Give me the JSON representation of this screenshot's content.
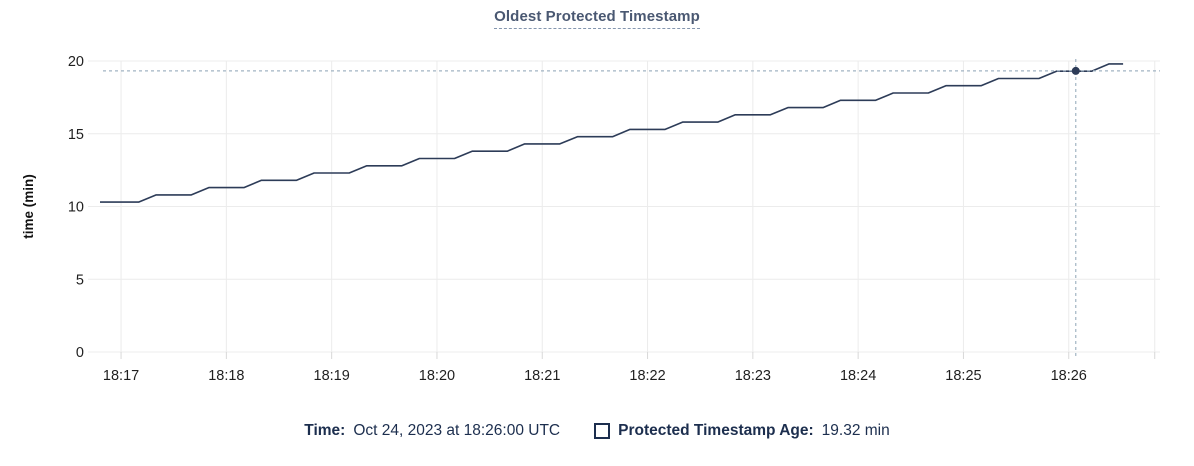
{
  "title": "Oldest Protected Timestamp",
  "legend": {
    "time_label": "Time:",
    "time_value": "Oct 24, 2023 at 18:26:00 UTC",
    "series_label": "Protected Timestamp Age:",
    "series_value": "19.32 min"
  },
  "chart_data": {
    "type": "line",
    "title": "Oldest Protected Timestamp",
    "xlabel": "",
    "ylabel": "time (min)",
    "ylim": [
      0,
      20
    ],
    "yticks": [
      0,
      5,
      10,
      15,
      20
    ],
    "grid": true,
    "legend_position": "bottom",
    "x_domain_seconds": [
      0,
      604
    ],
    "x_ticks": [
      {
        "t": 12,
        "label": "18:17"
      },
      {
        "t": 72,
        "label": "18:18"
      },
      {
        "t": 132,
        "label": "18:19"
      },
      {
        "t": 192,
        "label": "18:20"
      },
      {
        "t": 252,
        "label": "18:21"
      },
      {
        "t": 312,
        "label": "18:22"
      },
      {
        "t": 372,
        "label": "18:23"
      },
      {
        "t": 432,
        "label": "18:24"
      },
      {
        "t": 492,
        "label": "18:25"
      },
      {
        "t": 552,
        "label": "18:26"
      },
      {
        "t": 601,
        "label": ""
      }
    ],
    "series": [
      {
        "name": "Protected Timestamp Age",
        "unit": "min",
        "points": [
          [
            0,
            10.3
          ],
          [
            22,
            10.3
          ],
          [
            32,
            10.8
          ],
          [
            52,
            10.8
          ],
          [
            62,
            11.3
          ],
          [
            82,
            11.3
          ],
          [
            92,
            11.8
          ],
          [
            112,
            11.8
          ],
          [
            122,
            12.3
          ],
          [
            142,
            12.3
          ],
          [
            152,
            12.8
          ],
          [
            172,
            12.8
          ],
          [
            182,
            13.3
          ],
          [
            202,
            13.3
          ],
          [
            212,
            13.8
          ],
          [
            232,
            13.8
          ],
          [
            242,
            14.3
          ],
          [
            262,
            14.3
          ],
          [
            272,
            14.8
          ],
          [
            292,
            14.8
          ],
          [
            302,
            15.3
          ],
          [
            322,
            15.3
          ],
          [
            332,
            15.8
          ],
          [
            352,
            15.8
          ],
          [
            362,
            16.3
          ],
          [
            382,
            16.3
          ],
          [
            392,
            16.8
          ],
          [
            412,
            16.8
          ],
          [
            422,
            17.3
          ],
          [
            442,
            17.3
          ],
          [
            452,
            17.8
          ],
          [
            472,
            17.8
          ],
          [
            482,
            18.3
          ],
          [
            502,
            18.3
          ],
          [
            512,
            18.8
          ],
          [
            535,
            18.8
          ],
          [
            545,
            19.3
          ],
          [
            565,
            19.3
          ],
          [
            575,
            19.8
          ],
          [
            583,
            19.8
          ]
        ]
      }
    ],
    "crosshair": {
      "t": 556,
      "value": 19.32,
      "time_label": "Oct 24, 2023 at 18:26:00 UTC",
      "value_label": "19.32 min"
    },
    "colors": {
      "line": "#2d3c58",
      "dot": "#2d3c58",
      "grid": "#ececec",
      "tick_stub": "#d8d8d8",
      "crosshair": "#a2b4c3",
      "tick_text": "#1f1f1f",
      "axis_title_text": "#111111"
    }
  }
}
